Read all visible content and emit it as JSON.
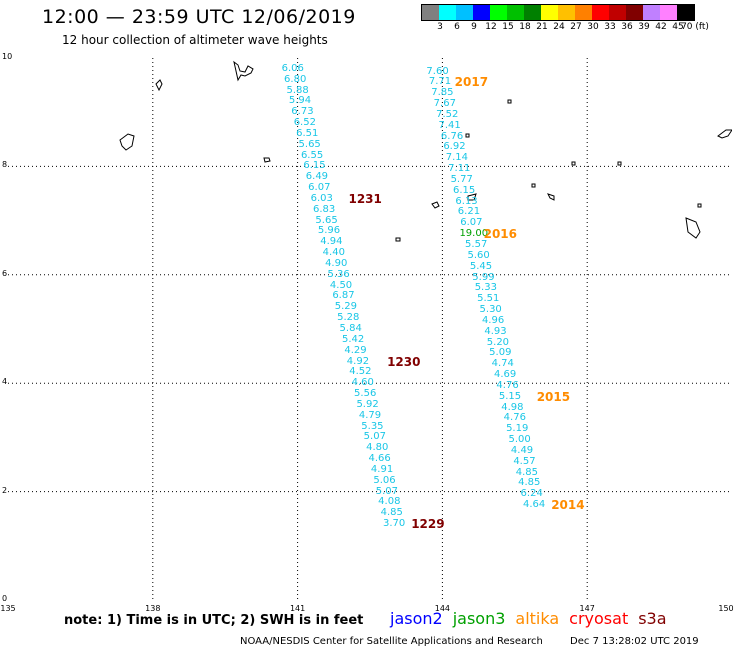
{
  "header": {
    "title": "12:00 — 23:59 UTC 12/06/2019",
    "subtitle": "12 hour collection of altimeter wave heights"
  },
  "legend": {
    "colors": [
      "#808080",
      "#00ffff",
      "#00c0ff",
      "#0000ff",
      "#00ff00",
      "#00c000",
      "#008000",
      "#ffff00",
      "#ffc000",
      "#ff8000",
      "#ff0000",
      "#c00000",
      "#800000",
      "#c080ff",
      "#ff80ff",
      "#000000"
    ],
    "labels": [
      "3",
      "6",
      "9",
      "12",
      "15",
      "18",
      "21",
      "24",
      "27",
      "30",
      "33",
      "36",
      "39",
      "42",
      "45",
      "70 (ft)"
    ]
  },
  "axes": {
    "lon_range": [
      135,
      150
    ],
    "lat_range": [
      0,
      10
    ],
    "x_ticks": [
      "135",
      "138",
      "141",
      "144",
      "147",
      "150"
    ],
    "y_ticks": [
      "0",
      "2",
      "4",
      "6",
      "8",
      "10"
    ]
  },
  "tracks": [
    {
      "name": "track-west",
      "points": [
        {
          "v": "6.06",
          "lon": 140.9,
          "lat": 9.8
        },
        {
          "v": "6.80",
          "lon": 140.95,
          "lat": 9.6
        },
        {
          "v": "5.88",
          "lon": 141.0,
          "lat": 9.4
        },
        {
          "v": "5.94",
          "lon": 141.05,
          "lat": 9.2
        },
        {
          "v": "6.73",
          "lon": 141.1,
          "lat": 9.0
        },
        {
          "v": "6.52",
          "lon": 141.15,
          "lat": 8.8
        },
        {
          "v": "6.51",
          "lon": 141.2,
          "lat": 8.6
        },
        {
          "v": "5.65",
          "lon": 141.25,
          "lat": 8.4
        },
        {
          "v": "6.55",
          "lon": 141.3,
          "lat": 8.2
        },
        {
          "v": "6.15",
          "lon": 141.35,
          "lat": 8.0
        },
        {
          "v": "6.49",
          "lon": 141.4,
          "lat": 7.8
        },
        {
          "v": "6.07",
          "lon": 141.45,
          "lat": 7.6
        },
        {
          "v": "6.03",
          "lon": 141.5,
          "lat": 7.4
        },
        {
          "v": "6.83",
          "lon": 141.55,
          "lat": 7.2
        },
        {
          "v": "5.65",
          "lon": 141.6,
          "lat": 7.0
        },
        {
          "v": "5.96",
          "lon": 141.65,
          "lat": 6.8
        },
        {
          "v": "4.94",
          "lon": 141.7,
          "lat": 6.6
        },
        {
          "v": "4.40",
          "lon": 141.75,
          "lat": 6.4
        },
        {
          "v": "4.90",
          "lon": 141.8,
          "lat": 6.2
        },
        {
          "v": "5.36",
          "lon": 141.85,
          "lat": 6.0
        },
        {
          "v": "4.50",
          "lon": 141.9,
          "lat": 5.8
        },
        {
          "v": "6.87",
          "lon": 141.95,
          "lat": 5.6
        },
        {
          "v": "5.29",
          "lon": 142.0,
          "lat": 5.4
        },
        {
          "v": "5.28",
          "lon": 142.05,
          "lat": 5.2
        },
        {
          "v": "5.84",
          "lon": 142.1,
          "lat": 5.0
        },
        {
          "v": "5.42",
          "lon": 142.15,
          "lat": 4.8
        },
        {
          "v": "4.29",
          "lon": 142.2,
          "lat": 4.6
        },
        {
          "v": "4.92",
          "lon": 142.25,
          "lat": 4.4
        },
        {
          "v": "4.52",
          "lon": 142.3,
          "lat": 4.2
        },
        {
          "v": "4.60",
          "lon": 142.35,
          "lat": 4.0
        },
        {
          "v": "5.56",
          "lon": 142.4,
          "lat": 3.8
        },
        {
          "v": "5.92",
          "lon": 142.45,
          "lat": 3.6
        },
        {
          "v": "4.79",
          "lon": 142.5,
          "lat": 3.4
        },
        {
          "v": "5.35",
          "lon": 142.55,
          "lat": 3.2
        },
        {
          "v": "5.07",
          "lon": 142.6,
          "lat": 3.0
        },
        {
          "v": "4.80",
          "lon": 142.65,
          "lat": 2.8
        },
        {
          "v": "4.66",
          "lon": 142.7,
          "lat": 2.6
        },
        {
          "v": "4.91",
          "lon": 142.75,
          "lat": 2.4
        },
        {
          "v": "5.06",
          "lon": 142.8,
          "lat": 2.2
        },
        {
          "v": "5.07",
          "lon": 142.85,
          "lat": 2.0
        },
        {
          "v": "4.08",
          "lon": 142.9,
          "lat": 1.8
        },
        {
          "v": "4.85",
          "lon": 142.95,
          "lat": 1.6
        },
        {
          "v": "3.70",
          "lon": 143.0,
          "lat": 1.4
        }
      ]
    },
    {
      "name": "track-east",
      "points": [
        {
          "v": "7.60",
          "lon": 143.9,
          "lat": 9.75
        },
        {
          "v": "7.71",
          "lon": 143.95,
          "lat": 9.55
        },
        {
          "v": "7.85",
          "lon": 144.0,
          "lat": 9.35
        },
        {
          "v": "7.67",
          "lon": 144.05,
          "lat": 9.15
        },
        {
          "v": "7.52",
          "lon": 144.1,
          "lat": 8.95
        },
        {
          "v": "7.41",
          "lon": 144.15,
          "lat": 8.75
        },
        {
          "v": "6.76",
          "lon": 144.2,
          "lat": 8.55
        },
        {
          "v": "6.92",
          "lon": 144.25,
          "lat": 8.35
        },
        {
          "v": "7.14",
          "lon": 144.3,
          "lat": 8.15
        },
        {
          "v": "7.11",
          "lon": 144.35,
          "lat": 7.95
        },
        {
          "v": "5.77",
          "lon": 144.4,
          "lat": 7.75
        },
        {
          "v": "6.15",
          "lon": 144.45,
          "lat": 7.55
        },
        {
          "v": "6.13",
          "lon": 144.5,
          "lat": 7.35
        },
        {
          "v": "6.21",
          "lon": 144.55,
          "lat": 7.15
        },
        {
          "v": "6.07",
          "lon": 144.6,
          "lat": 6.95
        },
        {
          "v": "19.00",
          "lon": 144.65,
          "lat": 6.75,
          "color": "#00a000"
        },
        {
          "v": "5.57",
          "lon": 144.7,
          "lat": 6.55
        },
        {
          "v": "5.60",
          "lon": 144.75,
          "lat": 6.35
        },
        {
          "v": "5.45",
          "lon": 144.8,
          "lat": 6.15
        },
        {
          "v": "5.99",
          "lon": 144.85,
          "lat": 5.95
        },
        {
          "v": "5.33",
          "lon": 144.9,
          "lat": 5.75
        },
        {
          "v": "5.51",
          "lon": 144.95,
          "lat": 5.55
        },
        {
          "v": "5.30",
          "lon": 145.0,
          "lat": 5.35
        },
        {
          "v": "4.96",
          "lon": 145.05,
          "lat": 5.15
        },
        {
          "v": "4.93",
          "lon": 145.1,
          "lat": 4.95
        },
        {
          "v": "5.20",
          "lon": 145.15,
          "lat": 4.75
        },
        {
          "v": "5.09",
          "lon": 145.2,
          "lat": 4.55
        },
        {
          "v": "4.74",
          "lon": 145.25,
          "lat": 4.35
        },
        {
          "v": "4.69",
          "lon": 145.3,
          "lat": 4.15
        },
        {
          "v": "4.76",
          "lon": 145.35,
          "lat": 3.95
        },
        {
          "v": "5.15",
          "lon": 145.4,
          "lat": 3.75
        },
        {
          "v": "4.98",
          "lon": 145.45,
          "lat": 3.55
        },
        {
          "v": "4.76",
          "lon": 145.5,
          "lat": 3.35
        },
        {
          "v": "5.19",
          "lon": 145.55,
          "lat": 3.15
        },
        {
          "v": "5.00",
          "lon": 145.6,
          "lat": 2.95
        },
        {
          "v": "4.49",
          "lon": 145.65,
          "lat": 2.75
        },
        {
          "v": "4.57",
          "lon": 145.7,
          "lat": 2.55
        },
        {
          "v": "4.85",
          "lon": 145.75,
          "lat": 2.35
        },
        {
          "v": "4.85",
          "lon": 145.8,
          "lat": 2.15
        },
        {
          "v": "6.24",
          "lon": 145.85,
          "lat": 1.95
        },
        {
          "v": "4.64",
          "lon": 145.9,
          "lat": 1.75
        }
      ]
    }
  ],
  "time_tags": [
    {
      "text": "2017",
      "lon": 144.6,
      "lat": 9.55,
      "color": "#ff8c00"
    },
    {
      "text": "2016",
      "lon": 145.2,
      "lat": 6.75,
      "color": "#ff8c00"
    },
    {
      "text": "2015",
      "lon": 146.3,
      "lat": 3.75,
      "color": "#ff8c00"
    },
    {
      "text": "2014",
      "lon": 146.6,
      "lat": 1.75,
      "color": "#ff8c00"
    },
    {
      "text": "1231",
      "lon": 142.4,
      "lat": 7.4,
      "color": "#800000"
    },
    {
      "text": "1230",
      "lon": 143.2,
      "lat": 4.4,
      "color": "#800000"
    },
    {
      "text": "1229",
      "lon": 143.7,
      "lat": 1.4,
      "color": "#800000"
    }
  ],
  "note": "note:  1) Time is in UTC;  2) SWH is in feet",
  "satellites": [
    {
      "text": "jason2",
      "color": "#0000ff"
    },
    {
      "text": "jason3",
      "color": "#00a000"
    },
    {
      "text": "altika",
      "color": "#ff8c00"
    },
    {
      "text": "cryosat",
      "color": "#ff0000"
    },
    {
      "text": "s3a",
      "color": "#800000"
    }
  ],
  "footer": {
    "credit": "NOAA/NESDIS Center for Satellite Applications and Research",
    "timestamp": "Dec  7 13:28:02 UTC 2019"
  }
}
